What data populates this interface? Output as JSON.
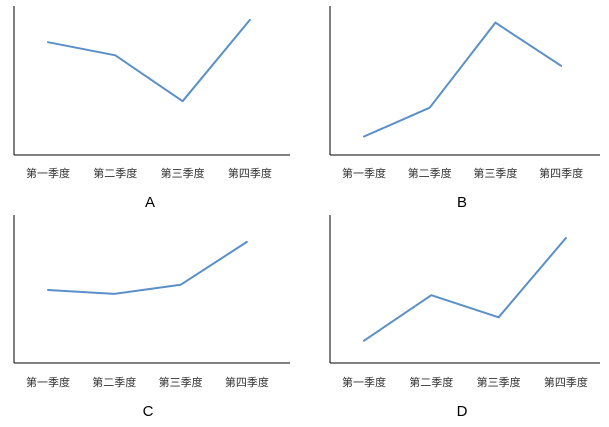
{
  "chart_data": [
    {
      "type": "line",
      "label": "A",
      "categories": [
        "第一季度",
        "第二季度",
        "第三季度",
        "第四季度"
      ],
      "values": [
        80,
        70,
        35,
        97
      ],
      "ylim": [
        0,
        100
      ],
      "grid": false,
      "legend": "none"
    },
    {
      "type": "line",
      "label": "B",
      "categories": [
        "第一季度",
        "第二季度",
        "第三季度",
        "第四季度"
      ],
      "values": [
        8,
        30,
        95,
        62
      ],
      "ylim": [
        0,
        100
      ],
      "grid": false,
      "legend": "none"
    },
    {
      "type": "line",
      "label": "C",
      "categories": [
        "第一季度",
        "第二季度",
        "第三季度",
        "第四季度"
      ],
      "values": [
        50,
        47,
        54,
        87
      ],
      "ylim": [
        0,
        100
      ],
      "grid": false,
      "legend": "none"
    },
    {
      "type": "line",
      "label": "D",
      "categories": [
        "第一季度",
        "第二季度",
        "第三季度",
        "第四季度"
      ],
      "values": [
        11,
        46,
        29,
        90
      ],
      "ylim": [
        0,
        100
      ],
      "grid": false,
      "legend": "none"
    }
  ]
}
